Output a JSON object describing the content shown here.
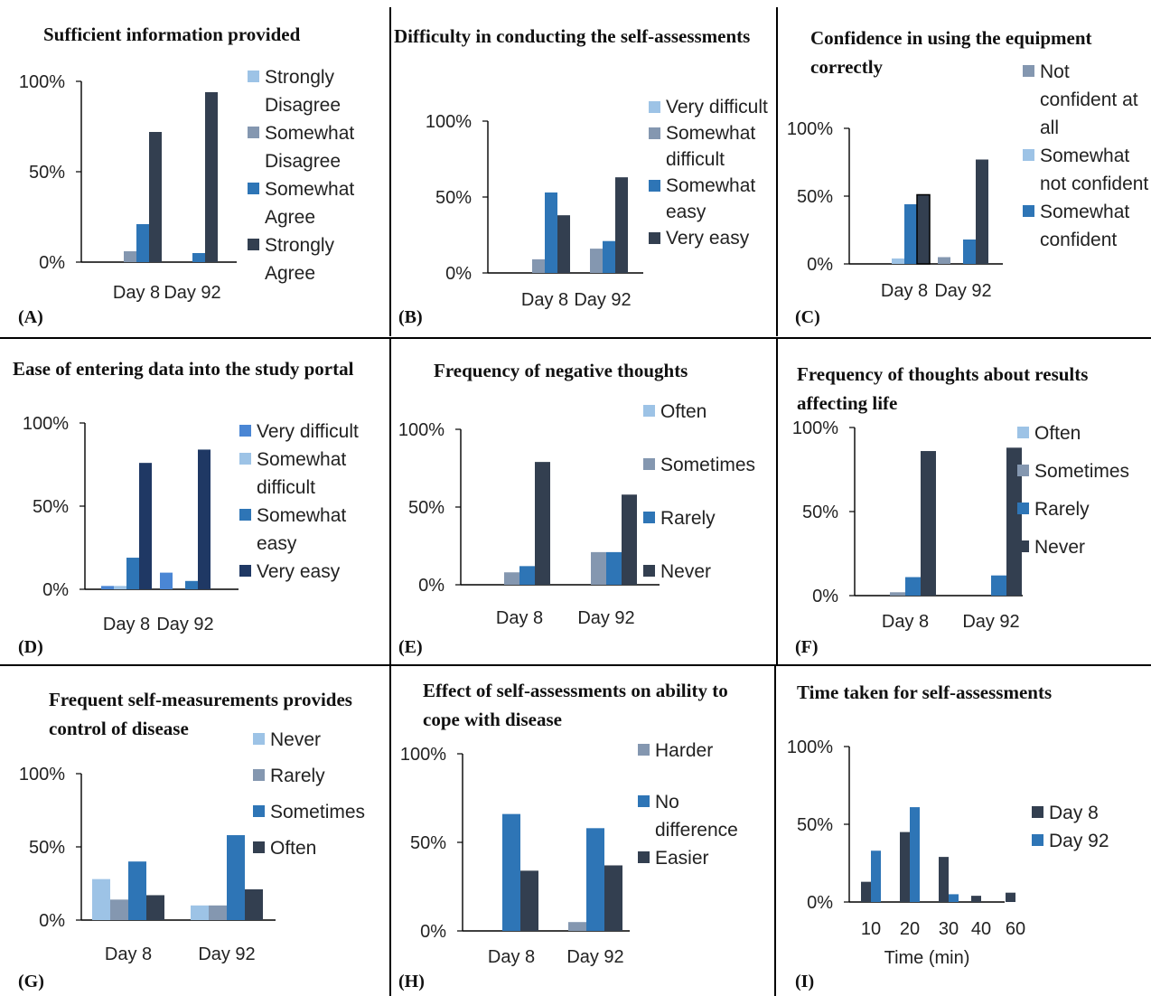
{
  "colors": {
    "light_blue": "#9dc3e6",
    "gray_blue": "#8497b0",
    "blue": "#2e75b6",
    "dark_slate": "#333f50",
    "bright_blue": "#4a86d4",
    "navy": "#1f3864"
  },
  "chart_data": [
    {
      "letter": "(A)",
      "type": "bar",
      "title": "Sufficient information provided",
      "categories": [
        "Day 8",
        "Day 92"
      ],
      "yticks": [
        "0%",
        "50%",
        "100%"
      ],
      "ylim": [
        0,
        100
      ],
      "series": [
        {
          "name": "Strongly Disagree",
          "color": "#9dc3e6",
          "values": [
            0,
            0
          ]
        },
        {
          "name": "Somewhat Disagree",
          "color": "#8497b0",
          "values": [
            6,
            0
          ]
        },
        {
          "name": "Somewhat Agree",
          "color": "#2e75b6",
          "values": [
            21,
            5
          ]
        },
        {
          "name": "Strongly Agree",
          "color": "#333f50",
          "values": [
            72,
            94
          ]
        }
      ],
      "legend": "right",
      "grid": false
    },
    {
      "letter": "(B)",
      "type": "bar",
      "title": "Difficulty in conducting the self-assessments",
      "categories": [
        "Day 8",
        "Day 92"
      ],
      "yticks": [
        "0%",
        "50%",
        "100%"
      ],
      "ylim": [
        0,
        100
      ],
      "series": [
        {
          "name": "Very difficult",
          "color": "#9dc3e6",
          "values": [
            0,
            0
          ]
        },
        {
          "name": "Somewhat difficult",
          "color": "#8497b0",
          "values": [
            9,
            16
          ]
        },
        {
          "name": "Somewhat easy",
          "color": "#2e75b6",
          "values": [
            53,
            21
          ]
        },
        {
          "name": "Very easy",
          "color": "#333f50",
          "values": [
            38,
            63
          ]
        }
      ],
      "legend": "right",
      "grid": false
    },
    {
      "letter": "(C)",
      "type": "bar",
      "title": "Confidence in using the equipment correctly",
      "categories": [
        "Day 8",
        "Day 92"
      ],
      "yticks": [
        "0%",
        "50%",
        "100%"
      ],
      "ylim": [
        0,
        100
      ],
      "series": [
        {
          "name": "Not confident at all",
          "color": "#8497b0",
          "values": [
            0,
            5
          ]
        },
        {
          "name": "Somewhat not confident",
          "color": "#9dc3e6",
          "values": [
            4,
            0
          ]
        },
        {
          "name": "Somewhat confident",
          "color": "#2e75b6",
          "values": [
            44,
            18
          ]
        },
        {
          "name": "",
          "color": "#333f50",
          "values": [
            51,
            77
          ]
        }
      ],
      "legend": "right",
      "grid": false
    },
    {
      "letter": "(D)",
      "type": "bar",
      "title": "Ease of entering data into the study portal",
      "categories": [
        "Day 8",
        "Day 92"
      ],
      "yticks": [
        "0%",
        "50%",
        "100%"
      ],
      "ylim": [
        0,
        100
      ],
      "series": [
        {
          "name": "Very difficult",
          "color": "#4a86d4",
          "values": [
            2,
            10
          ]
        },
        {
          "name": "Somewhat difficult",
          "color": "#9dc3e6",
          "values": [
            2,
            0
          ]
        },
        {
          "name": "Somewhat easy",
          "color": "#2e75b6",
          "values": [
            19,
            5
          ]
        },
        {
          "name": "Very easy",
          "color": "#1f3864",
          "values": [
            76,
            84
          ]
        }
      ],
      "legend": "right",
      "grid": false
    },
    {
      "letter": "(E)",
      "type": "bar",
      "title": "Frequency of negative thoughts",
      "categories": [
        "Day 8",
        "Day 92"
      ],
      "yticks": [
        "0%",
        "50%",
        "100%"
      ],
      "ylim": [
        0,
        100
      ],
      "series": [
        {
          "name": "Often",
          "color": "#9dc3e6",
          "values": [
            0,
            0
          ]
        },
        {
          "name": "Sometimes",
          "color": "#8497b0",
          "values": [
            8,
            21
          ]
        },
        {
          "name": "Rarely",
          "color": "#2e75b6",
          "values": [
            12,
            21
          ]
        },
        {
          "name": "Never",
          "color": "#333f50",
          "values": [
            79,
            58
          ]
        }
      ],
      "legend": "right",
      "grid": false
    },
    {
      "letter": "(F)",
      "type": "bar",
      "title": "Frequency of thoughts about results affecting life",
      "categories": [
        "Day 8",
        "Day 92"
      ],
      "yticks": [
        "0%",
        "50%",
        "100%"
      ],
      "ylim": [
        0,
        100
      ],
      "series": [
        {
          "name": "Often",
          "color": "#9dc3e6",
          "values": [
            0,
            0
          ]
        },
        {
          "name": "Sometimes",
          "color": "#8497b0",
          "values": [
            2,
            0
          ]
        },
        {
          "name": "Rarely",
          "color": "#2e75b6",
          "values": [
            11,
            12
          ]
        },
        {
          "name": "Never",
          "color": "#333f50",
          "values": [
            86,
            88
          ]
        }
      ],
      "legend": "right",
      "grid": false
    },
    {
      "letter": "(G)",
      "type": "bar",
      "title": "Frequent self-measurements provides control of disease",
      "categories": [
        "Day 8",
        "Day 92"
      ],
      "yticks": [
        "0%",
        "50%",
        "100%"
      ],
      "ylim": [
        0,
        100
      ],
      "series": [
        {
          "name": "Never",
          "color": "#9dc3e6",
          "values": [
            28,
            10
          ]
        },
        {
          "name": "Rarely",
          "color": "#8497b0",
          "values": [
            14,
            10
          ]
        },
        {
          "name": "Sometimes",
          "color": "#2e75b6",
          "values": [
            40,
            58
          ]
        },
        {
          "name": "Often",
          "color": "#333f50",
          "values": [
            17,
            21
          ]
        }
      ],
      "legend": "right",
      "grid": false
    },
    {
      "letter": "(H)",
      "type": "bar",
      "title": "Effect of self-assessments on ability to cope with disease",
      "categories": [
        "Day 8",
        "Day 92"
      ],
      "yticks": [
        "0%",
        "50%",
        "100%"
      ],
      "ylim": [
        0,
        100
      ],
      "series": [
        {
          "name": "Harder",
          "color": "#8497b0",
          "values": [
            0,
            5
          ]
        },
        {
          "name": "No difference",
          "color": "#2e75b6",
          "values": [
            66,
            58
          ]
        },
        {
          "name": "Easier",
          "color": "#333f50",
          "values": [
            34,
            37
          ]
        }
      ],
      "legend": "right",
      "grid": false
    },
    {
      "letter": "(I)",
      "type": "bar",
      "title": "Time taken for self-assessments",
      "categories": [
        "10",
        "20",
        "30",
        "40",
        "60"
      ],
      "yticks": [
        "0%",
        "50%",
        "100%"
      ],
      "ylim": [
        0,
        100
      ],
      "xlabel": "Time (min)",
      "series": [
        {
          "name": "Day 8",
          "color": "#333f50",
          "values": [
            13,
            45,
            29,
            4,
            6
          ]
        },
        {
          "name": "Day 92",
          "color": "#2e75b6",
          "values": [
            33,
            61,
            5,
            0,
            0
          ]
        }
      ],
      "legend": "right",
      "grid": false
    }
  ]
}
